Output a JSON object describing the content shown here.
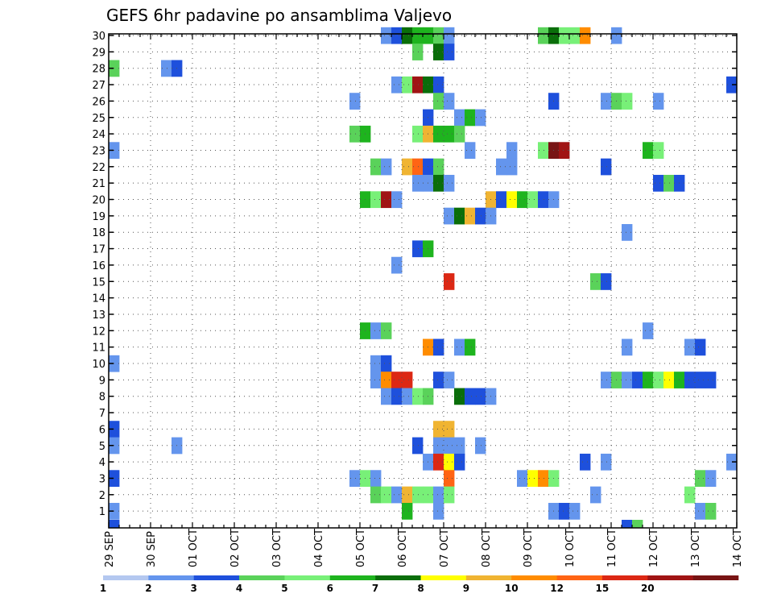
{
  "chart_data": {
    "type": "heatmap",
    "title": "GEFS 6hr padavine po ansamblima Valjevo",
    "xlabel": "",
    "ylabel": "",
    "x_tick_labels": [
      "29 SEP",
      "30 SEP",
      "01 OCT",
      "02 OCT",
      "03 OCT",
      "04 OCT",
      "05 OCT",
      "06 OCT",
      "07 OCT",
      "08 OCT",
      "09 OCT",
      "10 OCT",
      "11 OCT",
      "12 OCT",
      "13 OCT",
      "14 OCT"
    ],
    "y_tick_labels": [
      "1",
      "2",
      "3",
      "4",
      "5",
      "6",
      "7",
      "8",
      "9",
      "10",
      "11",
      "12",
      "13",
      "14",
      "15",
      "16",
      "17",
      "18",
      "19",
      "20",
      "21",
      "22",
      "23",
      "24",
      "25",
      "26",
      "27",
      "28",
      "29",
      "30"
    ],
    "steps_per_day": 4,
    "x_range_steps": [
      0,
      60
    ],
    "y_range": [
      1,
      30
    ],
    "grid": true,
    "legend_placement": "bottom",
    "legend_labels": [
      "1",
      "2",
      "3",
      "4",
      "5",
      "6",
      "7",
      "8",
      "9",
      "10",
      "12",
      "15",
      "20"
    ],
    "color_scale": [
      "#b4c8f0",
      "#6495ed",
      "#1e50dc",
      "#5ad25a",
      "#78f078",
      "#1eb41e",
      "#0a6e0a",
      "#ffff00",
      "#f0b432",
      "#ff8c00",
      "#ff6414",
      "#dc2814",
      "#a01414",
      "#781414"
    ],
    "cells": [
      [
        30,
        26,
        1
      ],
      [
        30,
        27,
        2
      ],
      [
        30,
        28,
        6
      ],
      [
        30,
        29,
        5
      ],
      [
        30,
        30,
        5
      ],
      [
        30,
        31,
        3
      ],
      [
        30,
        32,
        1
      ],
      [
        30,
        41,
        3
      ],
      [
        30,
        42,
        6
      ],
      [
        30,
        43,
        4
      ],
      [
        30,
        44,
        4
      ],
      [
        30,
        45,
        9
      ],
      [
        30,
        48,
        1
      ],
      [
        29,
        29,
        3
      ],
      [
        29,
        31,
        6
      ],
      [
        29,
        32,
        2
      ],
      [
        28,
        0,
        3
      ],
      [
        28,
        5,
        1
      ],
      [
        28,
        6,
        2
      ],
      [
        27,
        27,
        1
      ],
      [
        27,
        28,
        4
      ],
      [
        27,
        29,
        12
      ],
      [
        27,
        30,
        6
      ],
      [
        27,
        31,
        2
      ],
      [
        27,
        59,
        2
      ],
      [
        26,
        23,
        1
      ],
      [
        26,
        31,
        3
      ],
      [
        26,
        32,
        1
      ],
      [
        26,
        42,
        2
      ],
      [
        26,
        47,
        1
      ],
      [
        26,
        48,
        3
      ],
      [
        26,
        49,
        4
      ],
      [
        26,
        52,
        1
      ],
      [
        25,
        30,
        2
      ],
      [
        25,
        33,
        1
      ],
      [
        25,
        34,
        5
      ],
      [
        25,
        35,
        1
      ],
      [
        24,
        23,
        3
      ],
      [
        24,
        24,
        5
      ],
      [
        24,
        29,
        4
      ],
      [
        24,
        30,
        8
      ],
      [
        24,
        31,
        5
      ],
      [
        24,
        32,
        5
      ],
      [
        24,
        33,
        3
      ],
      [
        23,
        0,
        1
      ],
      [
        23,
        34,
        1
      ],
      [
        23,
        38,
        1
      ],
      [
        23,
        41,
        4
      ],
      [
        23,
        42,
        13
      ],
      [
        23,
        43,
        12
      ],
      [
        23,
        51,
        5
      ],
      [
        23,
        52,
        4
      ],
      [
        22,
        25,
        3
      ],
      [
        22,
        26,
        1
      ],
      [
        22,
        28,
        8
      ],
      [
        22,
        29,
        10
      ],
      [
        22,
        30,
        2
      ],
      [
        22,
        31,
        3
      ],
      [
        22,
        37,
        1
      ],
      [
        22,
        38,
        1
      ],
      [
        22,
        47,
        2
      ],
      [
        21,
        29,
        1
      ],
      [
        21,
        30,
        1
      ],
      [
        21,
        31,
        6
      ],
      [
        21,
        32,
        1
      ],
      [
        21,
        52,
        2
      ],
      [
        21,
        53,
        3
      ],
      [
        21,
        54,
        2
      ],
      [
        20,
        24,
        5
      ],
      [
        20,
        25,
        4
      ],
      [
        20,
        26,
        12
      ],
      [
        20,
        27,
        1
      ],
      [
        20,
        36,
        8
      ],
      [
        20,
        37,
        2
      ],
      [
        20,
        38,
        7
      ],
      [
        20,
        39,
        5
      ],
      [
        20,
        40,
        4
      ],
      [
        20,
        41,
        2
      ],
      [
        20,
        42,
        1
      ],
      [
        19,
        32,
        1
      ],
      [
        19,
        33,
        6
      ],
      [
        19,
        34,
        8
      ],
      [
        19,
        35,
        2
      ],
      [
        19,
        36,
        1
      ],
      [
        18,
        49,
        1
      ],
      [
        17,
        29,
        2
      ],
      [
        17,
        30,
        5
      ],
      [
        16,
        27,
        1
      ],
      [
        15,
        32,
        11
      ],
      [
        15,
        46,
        3
      ],
      [
        15,
        47,
        2
      ],
      [
        12,
        24,
        5
      ],
      [
        12,
        25,
        1
      ],
      [
        12,
        26,
        3
      ],
      [
        12,
        51,
        1
      ],
      [
        11,
        30,
        9
      ],
      [
        11,
        31,
        2
      ],
      [
        11,
        33,
        1
      ],
      [
        11,
        34,
        5
      ],
      [
        11,
        49,
        1
      ],
      [
        11,
        55,
        1
      ],
      [
        11,
        56,
        2
      ],
      [
        10,
        0,
        1
      ],
      [
        10,
        25,
        1
      ],
      [
        10,
        26,
        2
      ],
      [
        9,
        25,
        1
      ],
      [
        9,
        26,
        9
      ],
      [
        9,
        27,
        11
      ],
      [
        9,
        28,
        11
      ],
      [
        9,
        31,
        2
      ],
      [
        9,
        32,
        1
      ],
      [
        9,
        47,
        1
      ],
      [
        9,
        48,
        3
      ],
      [
        9,
        49,
        1
      ],
      [
        9,
        50,
        2
      ],
      [
        9,
        51,
        5
      ],
      [
        9,
        52,
        4
      ],
      [
        9,
        53,
        7
      ],
      [
        9,
        54,
        5
      ],
      [
        9,
        55,
        2
      ],
      [
        9,
        56,
        2
      ],
      [
        9,
        57,
        2
      ],
      [
        8,
        26,
        1
      ],
      [
        8,
        27,
        2
      ],
      [
        8,
        28,
        1
      ],
      [
        8,
        29,
        4
      ],
      [
        8,
        30,
        3
      ],
      [
        8,
        33,
        6
      ],
      [
        8,
        34,
        2
      ],
      [
        8,
        35,
        2
      ],
      [
        8,
        36,
        1
      ],
      [
        6,
        0,
        2
      ],
      [
        6,
        31,
        8
      ],
      [
        6,
        32,
        8
      ],
      [
        5,
        0,
        1
      ],
      [
        5,
        6,
        1
      ],
      [
        5,
        29,
        2
      ],
      [
        5,
        31,
        1
      ],
      [
        5,
        32,
        1
      ],
      [
        5,
        33,
        1
      ],
      [
        5,
        35,
        1
      ],
      [
        4,
        30,
        1
      ],
      [
        4,
        31,
        11
      ],
      [
        4,
        32,
        7
      ],
      [
        4,
        33,
        2
      ],
      [
        4,
        45,
        2
      ],
      [
        4,
        47,
        1
      ],
      [
        4,
        59,
        1
      ],
      [
        3,
        0,
        2
      ],
      [
        3,
        23,
        1
      ],
      [
        3,
        24,
        4
      ],
      [
        3,
        25,
        1
      ],
      [
        3,
        32,
        10
      ],
      [
        3,
        39,
        1
      ],
      [
        3,
        40,
        7
      ],
      [
        3,
        41,
        9
      ],
      [
        3,
        42,
        4
      ],
      [
        3,
        56,
        3
      ],
      [
        3,
        57,
        1
      ],
      [
        2,
        25,
        3
      ],
      [
        2,
        26,
        4
      ],
      [
        2,
        27,
        1
      ],
      [
        2,
        28,
        8
      ],
      [
        2,
        29,
        4
      ],
      [
        2,
        30,
        4
      ],
      [
        2,
        31,
        1
      ],
      [
        2,
        32,
        4
      ],
      [
        2,
        46,
        1
      ],
      [
        2,
        55,
        4
      ],
      [
        1,
        0,
        1
      ],
      [
        1,
        28,
        5
      ],
      [
        1,
        31,
        1
      ],
      [
        1,
        42,
        1
      ],
      [
        1,
        43,
        2
      ],
      [
        1,
        44,
        1
      ],
      [
        1,
        56,
        1
      ],
      [
        1,
        57,
        3
      ],
      [
        0,
        0,
        2
      ],
      [
        0,
        49,
        2
      ],
      [
        0,
        50,
        3
      ]
    ]
  }
}
